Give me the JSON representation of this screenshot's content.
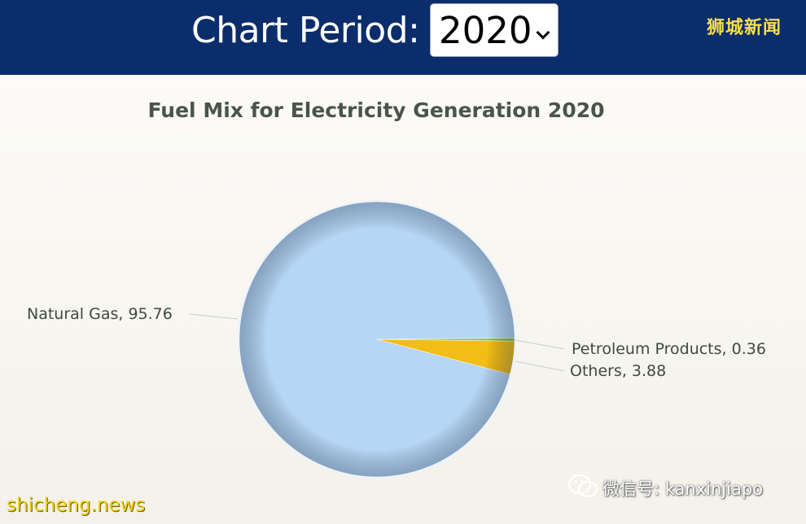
{
  "header": {
    "period_label": "Chart Period:",
    "period_value": "2020",
    "brand_text": "狮城新闻",
    "background": "#0c2d6b"
  },
  "chart_data": {
    "type": "pie",
    "title": "Fuel Mix for Electricity Generation 2020",
    "slices": [
      {
        "label": "Natural Gas",
        "value": 95.76,
        "color": "#b5d6f5"
      },
      {
        "label": "Petroleum Products",
        "value": 0.36,
        "color": "#8fc63f"
      },
      {
        "label": "Others",
        "value": 3.88,
        "color": "#f2bd17"
      }
    ],
    "data_labels": [
      "Natural Gas, 95.76",
      "Petroleum Products, 0.36",
      "Others, 3.88"
    ]
  },
  "watermarks": {
    "left": "shicheng.news",
    "right": "微信号: kanxinjiapo",
    "right_icon": "wechat-icon"
  }
}
